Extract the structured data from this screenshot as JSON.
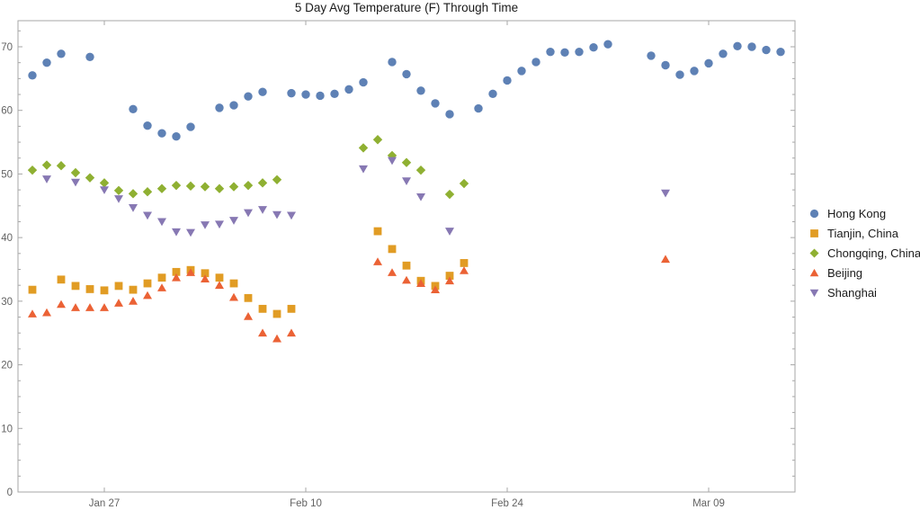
{
  "window": {
    "background": "#ffffff"
  },
  "chart_data": {
    "type": "scatter",
    "title": "5 Day Avg Temperature (F) Through Time",
    "xlabel": "",
    "ylabel": "",
    "frame_color": "#a7a7a7",
    "tick_label_color": "#636363",
    "grid": false,
    "legend_position": "right-center",
    "x_axis": {
      "note": "day 0 = Jan 22; major ticks labeled below",
      "tick_labels": [
        "Jan 27",
        "Feb 10",
        "Feb 24",
        "Mar 09"
      ],
      "tick_days": [
        5,
        19,
        33,
        47
      ],
      "range_days": [
        -1,
        53
      ]
    },
    "y_axis": {
      "ticks": [
        0,
        10,
        20,
        30,
        40,
        50,
        60,
        70
      ],
      "minor_step": 2.5,
      "range": [
        0,
        74.1
      ]
    },
    "series": [
      {
        "name": "Hong Kong",
        "marker": "circle",
        "color": "#5E81B5",
        "points": [
          [
            0,
            65.5
          ],
          [
            1,
            67.5
          ],
          [
            2,
            68.9
          ],
          [
            4,
            68.4
          ],
          [
            7,
            60.2
          ],
          [
            8,
            57.6
          ],
          [
            9,
            56.4
          ],
          [
            10,
            55.9
          ],
          [
            11,
            57.4
          ],
          [
            13,
            60.4
          ],
          [
            14,
            60.8
          ],
          [
            15,
            62.2
          ],
          [
            16,
            62.9
          ],
          [
            18,
            62.7
          ],
          [
            19,
            62.5
          ],
          [
            20,
            62.3
          ],
          [
            21,
            62.6
          ],
          [
            22,
            63.3
          ],
          [
            23,
            64.4
          ],
          [
            25,
            67.6
          ],
          [
            26,
            65.7
          ],
          [
            27,
            63.1
          ],
          [
            28,
            61.1
          ],
          [
            29,
            59.4
          ],
          [
            31,
            60.3
          ],
          [
            32,
            62.6
          ],
          [
            33,
            64.7
          ],
          [
            34,
            66.2
          ],
          [
            35,
            67.6
          ],
          [
            36,
            69.2
          ],
          [
            37,
            69.1
          ],
          [
            38,
            69.2
          ],
          [
            39,
            69.9
          ],
          [
            40,
            70.4
          ],
          [
            43,
            68.6
          ],
          [
            44,
            67.1
          ],
          [
            45,
            65.6
          ],
          [
            46,
            66.2
          ],
          [
            47,
            67.4
          ],
          [
            48,
            68.9
          ],
          [
            49,
            70.1
          ],
          [
            50,
            70.0
          ],
          [
            51,
            69.5
          ],
          [
            52,
            69.2
          ]
        ]
      },
      {
        "name": "Tianjin, China",
        "marker": "square",
        "color": "#E19C24",
        "points": [
          [
            0,
            31.8
          ],
          [
            2,
            33.4
          ],
          [
            3,
            32.4
          ],
          [
            4,
            31.9
          ],
          [
            5,
            31.7
          ],
          [
            6,
            32.4
          ],
          [
            7,
            31.8
          ],
          [
            8,
            32.8
          ],
          [
            9,
            33.7
          ],
          [
            10,
            34.6
          ],
          [
            11,
            34.9
          ],
          [
            12,
            34.4
          ],
          [
            13,
            33.7
          ],
          [
            14,
            32.8
          ],
          [
            15,
            30.5
          ],
          [
            16,
            28.8
          ],
          [
            17,
            28.0
          ],
          [
            18,
            28.8
          ],
          [
            24,
            41.0
          ],
          [
            25,
            38.2
          ],
          [
            26,
            35.6
          ],
          [
            27,
            33.2
          ],
          [
            28,
            32.4
          ],
          [
            29,
            34.0
          ],
          [
            30,
            36.0
          ]
        ]
      },
      {
        "name": "Chongqing, China",
        "marker": "diamond",
        "color": "#8FB032",
        "points": [
          [
            0,
            50.6
          ],
          [
            1,
            51.4
          ],
          [
            2,
            51.3
          ],
          [
            3,
            50.2
          ],
          [
            4,
            49.4
          ],
          [
            5,
            48.6
          ],
          [
            6,
            47.4
          ],
          [
            7,
            46.9
          ],
          [
            8,
            47.2
          ],
          [
            9,
            47.7
          ],
          [
            10,
            48.2
          ],
          [
            11,
            48.1
          ],
          [
            12,
            48.0
          ],
          [
            13,
            47.7
          ],
          [
            14,
            48.0
          ],
          [
            15,
            48.2
          ],
          [
            16,
            48.6
          ],
          [
            17,
            49.1
          ],
          [
            23,
            54.1
          ],
          [
            24,
            55.4
          ],
          [
            25,
            52.9
          ],
          [
            26,
            51.8
          ],
          [
            27,
            50.6
          ],
          [
            29,
            46.8
          ],
          [
            30,
            48.5
          ]
        ]
      },
      {
        "name": "Beijing",
        "marker": "triangle-up",
        "color": "#EB6235",
        "points": [
          [
            0,
            28.0
          ],
          [
            1,
            28.2
          ],
          [
            2,
            29.5
          ],
          [
            3,
            29.0
          ],
          [
            4,
            29.0
          ],
          [
            5,
            29.0
          ],
          [
            6,
            29.7
          ],
          [
            7,
            30.0
          ],
          [
            8,
            30.9
          ],
          [
            9,
            32.1
          ],
          [
            10,
            33.7
          ],
          [
            11,
            34.5
          ],
          [
            12,
            33.5
          ],
          [
            13,
            32.5
          ],
          [
            14,
            30.6
          ],
          [
            15,
            27.6
          ],
          [
            16,
            25.0
          ],
          [
            17,
            24.1
          ],
          [
            18,
            25.0
          ],
          [
            24,
            36.2
          ],
          [
            25,
            34.5
          ],
          [
            26,
            33.3
          ],
          [
            27,
            32.8
          ],
          [
            28,
            31.8
          ],
          [
            29,
            33.2
          ],
          [
            30,
            34.8
          ],
          [
            44,
            36.6
          ]
        ]
      },
      {
        "name": "Shanghai",
        "marker": "triangle-down",
        "color": "#8778B3",
        "points": [
          [
            1,
            49.2
          ],
          [
            3,
            48.7
          ],
          [
            5,
            47.5
          ],
          [
            6,
            46.1
          ],
          [
            7,
            44.7
          ],
          [
            8,
            43.5
          ],
          [
            9,
            42.5
          ],
          [
            10,
            40.9
          ],
          [
            11,
            40.8
          ],
          [
            12,
            42.0
          ],
          [
            13,
            42.1
          ],
          [
            14,
            42.7
          ],
          [
            15,
            43.9
          ],
          [
            16,
            44.4
          ],
          [
            17,
            43.6
          ],
          [
            18,
            43.5
          ],
          [
            23,
            50.8
          ],
          [
            25,
            52.1
          ],
          [
            26,
            48.9
          ],
          [
            27,
            46.4
          ],
          [
            29,
            41.0
          ],
          [
            44,
            47.0
          ]
        ]
      }
    ]
  }
}
